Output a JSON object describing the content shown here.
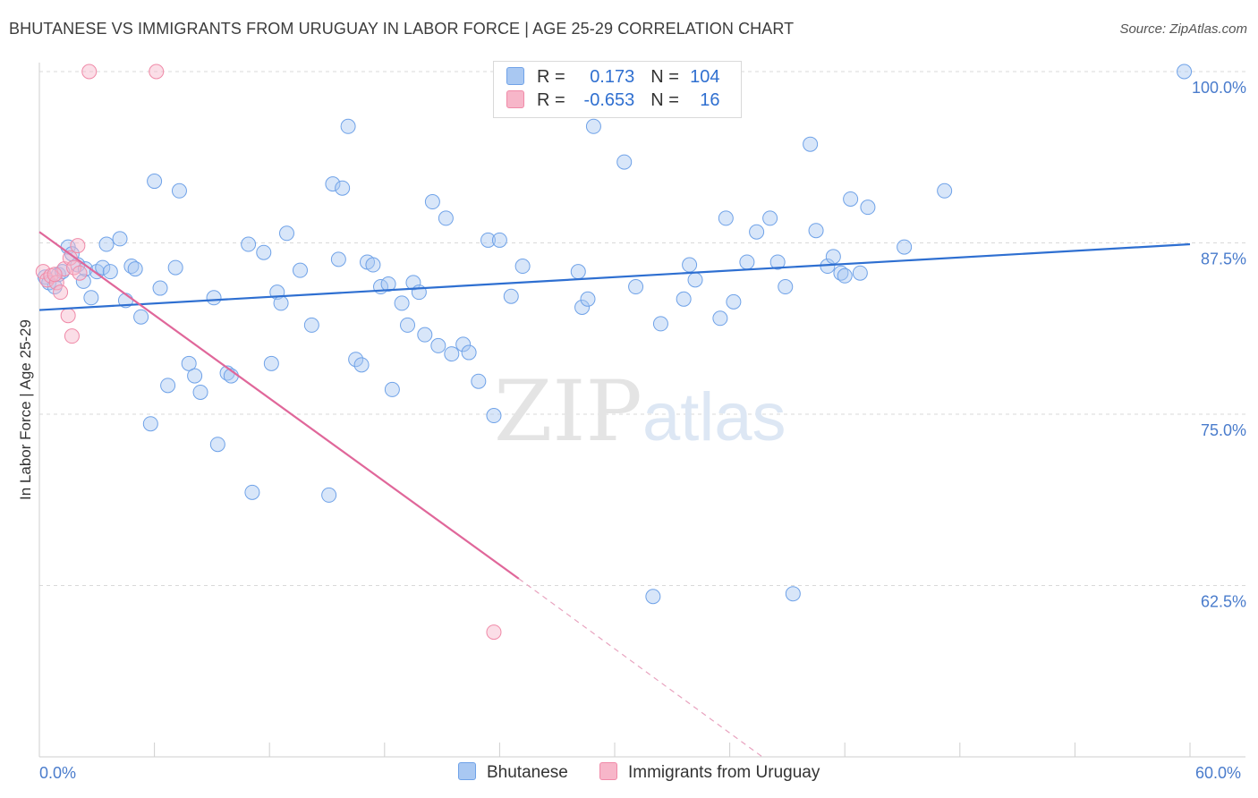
{
  "header": {
    "title": "BHUTANESE VS IMMIGRANTS FROM URUGUAY IN LABOR FORCE | AGE 25-29 CORRELATION CHART",
    "source": "Source: ZipAtlas.com"
  },
  "watermark": {
    "zip": "ZIP",
    "atlas": "atlas"
  },
  "legend": {
    "rows": [
      {
        "r_label": "R =",
        "r_value": "0.173",
        "n_label": "N =",
        "n_value": "104",
        "color": "#a9c8f2"
      },
      {
        "r_label": "R =",
        "r_value": "-0.653",
        "n_label": "N =",
        "n_value": "16",
        "color": "#f7b6c9"
      }
    ]
  },
  "bottom_legend": {
    "items": [
      {
        "label": "Bhutanese",
        "color": "#a9c8f2"
      },
      {
        "label": "Immigrants from Uruguay",
        "color": "#f7b6c9"
      }
    ]
  },
  "chart_data": {
    "type": "scatter",
    "title": "BHUTANESE VS IMMIGRANTS FROM URUGUAY IN LABOR FORCE | AGE 25-29 CORRELATION CHART",
    "xlabel": "",
    "ylabel": "In Labor Force | Age 25-29",
    "xlim": [
      0,
      60
    ],
    "ylim": [
      50,
      101.3
    ],
    "x_tick_labels": [
      "0.0%",
      "60.0%"
    ],
    "y_ticks": [
      62.5,
      75.0,
      87.5,
      100.0
    ],
    "y_tick_labels": [
      "62.5%",
      "75.0%",
      "87.5%",
      "100.0%"
    ],
    "grid": "horizontal dashed",
    "legend_position": "top-center",
    "series": [
      {
        "name": "Bhutanese",
        "color": "#6fa2e8",
        "trend": {
          "x0": 0,
          "y0": 82.6,
          "x1": 60,
          "y1": 87.4
        },
        "points": [
          [
            0.3,
            85.0
          ],
          [
            0.5,
            84.6
          ],
          [
            0.8,
            84.3
          ],
          [
            1.0,
            85.2
          ],
          [
            1.2,
            85.4
          ],
          [
            1.5,
            87.2
          ],
          [
            1.7,
            86.7
          ],
          [
            2.0,
            85.9
          ],
          [
            2.3,
            84.7
          ],
          [
            2.4,
            85.6
          ],
          [
            2.7,
            83.5
          ],
          [
            3.0,
            85.4
          ],
          [
            3.3,
            85.7
          ],
          [
            3.5,
            87.4
          ],
          [
            3.7,
            85.4
          ],
          [
            4.2,
            87.8
          ],
          [
            4.5,
            83.3
          ],
          [
            4.8,
            85.8
          ],
          [
            5.0,
            85.6
          ],
          [
            5.3,
            82.1
          ],
          [
            6.0,
            92.0
          ],
          [
            6.3,
            84.2
          ],
          [
            5.8,
            74.3
          ],
          [
            6.7,
            77.1
          ],
          [
            7.1,
            85.7
          ],
          [
            7.3,
            91.3
          ],
          [
            7.8,
            78.7
          ],
          [
            8.1,
            77.8
          ],
          [
            8.4,
            76.6
          ],
          [
            9.1,
            83.5
          ],
          [
            9.3,
            72.8
          ],
          [
            9.8,
            78.0
          ],
          [
            10.0,
            77.8
          ],
          [
            10.9,
            87.4
          ],
          [
            11.1,
            69.3
          ],
          [
            11.7,
            86.8
          ],
          [
            12.1,
            78.7
          ],
          [
            12.4,
            83.9
          ],
          [
            12.6,
            83.1
          ],
          [
            12.9,
            88.2
          ],
          [
            13.6,
            85.5
          ],
          [
            14.2,
            81.5
          ],
          [
            15.1,
            69.1
          ],
          [
            15.3,
            91.8
          ],
          [
            15.8,
            91.5
          ],
          [
            15.6,
            86.3
          ],
          [
            16.1,
            96.0
          ],
          [
            16.5,
            79.0
          ],
          [
            16.8,
            78.6
          ],
          [
            17.1,
            86.1
          ],
          [
            17.4,
            85.9
          ],
          [
            17.8,
            84.3
          ],
          [
            18.2,
            84.5
          ],
          [
            18.4,
            76.8
          ],
          [
            18.9,
            83.1
          ],
          [
            19.2,
            81.5
          ],
          [
            19.5,
            84.6
          ],
          [
            19.8,
            83.9
          ],
          [
            20.1,
            80.8
          ],
          [
            20.5,
            90.5
          ],
          [
            20.8,
            80.0
          ],
          [
            21.2,
            89.3
          ],
          [
            21.5,
            79.4
          ],
          [
            22.1,
            80.1
          ],
          [
            22.4,
            79.5
          ],
          [
            22.9,
            77.4
          ],
          [
            23.4,
            87.7
          ],
          [
            24.0,
            87.7
          ],
          [
            23.7,
            74.9
          ],
          [
            24.6,
            83.6
          ],
          [
            25.2,
            85.8
          ],
          [
            28.1,
            85.4
          ],
          [
            28.3,
            82.8
          ],
          [
            28.6,
            83.4
          ],
          [
            28.9,
            96.0
          ],
          [
            30.5,
            93.4
          ],
          [
            31.1,
            84.3
          ],
          [
            32.0,
            61.7
          ],
          [
            32.4,
            81.6
          ],
          [
            33.6,
            83.4
          ],
          [
            33.9,
            85.9
          ],
          [
            34.2,
            84.8
          ],
          [
            35.8,
            89.3
          ],
          [
            35.5,
            82.0
          ],
          [
            36.2,
            83.2
          ],
          [
            36.9,
            86.1
          ],
          [
            37.4,
            88.3
          ],
          [
            38.1,
            89.3
          ],
          [
            38.5,
            86.1
          ],
          [
            38.9,
            84.3
          ],
          [
            40.2,
            94.7
          ],
          [
            40.5,
            88.4
          ],
          [
            41.1,
            85.8
          ],
          [
            41.4,
            86.5
          ],
          [
            41.8,
            85.3
          ],
          [
            42.0,
            85.1
          ],
          [
            42.3,
            90.7
          ],
          [
            43.2,
            90.1
          ],
          [
            42.8,
            85.3
          ],
          [
            39.3,
            61.9
          ],
          [
            45.1,
            87.2
          ],
          [
            47.2,
            91.3
          ],
          [
            59.7,
            100.0
          ]
        ]
      },
      {
        "name": "Immigrants from Uruguay",
        "color": "#f08aa8",
        "trend": {
          "x0": 0,
          "y0": 88.3,
          "x1": 25.0,
          "y1": 63.0,
          "dashed_to": {
            "x": 37.7,
            "y": 50.0
          }
        },
        "points": [
          [
            0.2,
            85.4
          ],
          [
            0.4,
            84.8
          ],
          [
            0.6,
            85.1
          ],
          [
            0.9,
            84.6
          ],
          [
            1.1,
            83.9
          ],
          [
            1.3,
            85.6
          ],
          [
            1.6,
            86.4
          ],
          [
            1.8,
            85.7
          ],
          [
            2.0,
            87.3
          ],
          [
            2.1,
            85.3
          ],
          [
            1.5,
            82.2
          ],
          [
            1.7,
            80.7
          ],
          [
            2.6,
            100.0
          ],
          [
            6.1,
            100.0
          ],
          [
            23.7,
            59.1
          ],
          [
            0.8,
            85.2
          ]
        ]
      }
    ]
  }
}
